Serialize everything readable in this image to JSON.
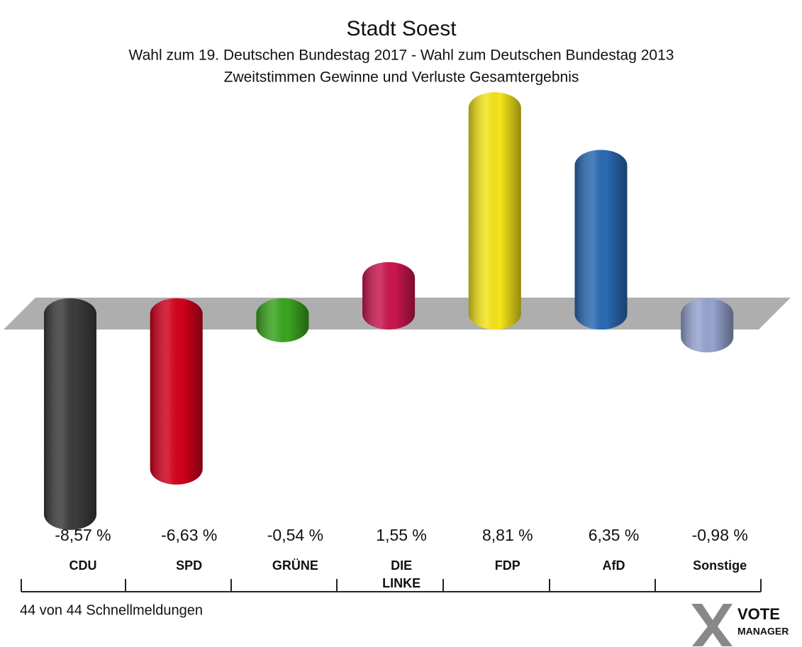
{
  "chart_data": {
    "type": "bar",
    "title": "Stadt Soest",
    "subtitle": [
      "Wahl zum 19. Deutschen Bundestag 2017 - Wahl zum Deutschen Bundestag 2013",
      "Zweitstimmen Gewinne und Verluste Gesamtergebnis"
    ],
    "categories": [
      "CDU",
      "SPD",
      "GRÜNE",
      "DIE LINKE",
      "FDP",
      "AfD",
      "Sonstige"
    ],
    "values": [
      -8.57,
      -6.63,
      -0.54,
      1.55,
      8.81,
      6.35,
      -0.98
    ],
    "value_labels": [
      "-8,57 %",
      "-6,63 %",
      "-0,54 %",
      "1,55 %",
      "8,81 %",
      "6,35 %",
      "-0,98 %"
    ],
    "colors": [
      "#3c3c3c",
      "#d4001c",
      "#3aa51e",
      "#cc1650",
      "#f5e51a",
      "#2a6ab4",
      "#96a4d0"
    ],
    "footer": "44 von 44 Schnellmeldungen",
    "logo": [
      "VOTE",
      "MANAGER"
    ]
  }
}
